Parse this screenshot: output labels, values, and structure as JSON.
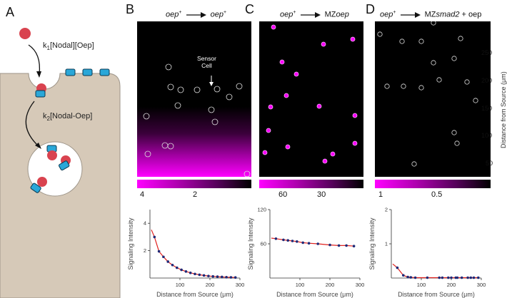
{
  "panels": {
    "A": {
      "label": "A",
      "k1": "k",
      "k1_sub": "1",
      "k1_rest": "[Nodal][Oep]",
      "k2": "k",
      "k2_sub": "2",
      "k2_rest": "[Nodal-Oep]"
    },
    "B": {
      "label": "B",
      "title_left": "oep",
      "title_left_sup": "+",
      "title_right": "oep",
      "title_right_sup": "+",
      "sensor_line1": "Sensor",
      "sensor_line2": "Cell",
      "colorbar_ticks": [
        "4",
        "2"
      ]
    },
    "C": {
      "label": "C",
      "title_left": "oep",
      "title_left_sup": "+",
      "title_right_prefix": "MZ",
      "title_right_italic": "oep",
      "colorbar_ticks": [
        "60",
        "30"
      ]
    },
    "D": {
      "label": "D",
      "title_left": "oep",
      "title_left_sup": "+",
      "title_right_prefix": "MZ",
      "title_right_italic": "smad2",
      "title_right_suffix": " + oep",
      "colorbar_ticks": [
        "1",
        "0.5"
      ]
    }
  },
  "right_axis": {
    "label": "Distance from Source (μm)",
    "ticks": [
      "250",
      "200",
      "150",
      "100",
      "50"
    ]
  },
  "colors": {
    "membrane": "#d6c9b8",
    "magenta": "#ff00ff",
    "nodal": "#d9434f",
    "receptor": "#2aa7d8",
    "curve": "#e0201e",
    "points": "#1e2a78"
  },
  "chart_data": [
    {
      "type": "scatter",
      "xlabel": "Distance from Source (μm)",
      "ylabel": "Signaling Intensity",
      "xlim": [
        0,
        300
      ],
      "ylim": [
        0,
        5
      ],
      "xticks": [
        "100",
        "200",
        "300"
      ],
      "yticks": [
        "2",
        "4"
      ],
      "x": [
        15,
        30,
        45,
        60,
        75,
        90,
        105,
        120,
        135,
        150,
        165,
        180,
        195,
        210,
        225,
        240,
        255,
        270,
        285
      ],
      "y": [
        3.0,
        1.95,
        1.55,
        1.2,
        0.95,
        0.75,
        0.6,
        0.48,
        0.38,
        0.3,
        0.24,
        0.19,
        0.15,
        0.12,
        0.1,
        0.08,
        0.06,
        0.05,
        0.04
      ],
      "fit": "exponential"
    },
    {
      "type": "scatter",
      "xlabel": "Distance from Source (μm)",
      "ylabel": "Signaling Intensity",
      "xlim": [
        0,
        300
      ],
      "ylim": [
        0,
        120
      ],
      "xticks": [
        "100",
        "200",
        "300"
      ],
      "yticks": [
        "60",
        "120"
      ],
      "x": [
        20,
        45,
        60,
        75,
        90,
        110,
        130,
        160,
        200,
        230,
        255,
        280
      ],
      "y": [
        69,
        67,
        66,
        65,
        64,
        62,
        61,
        60,
        58,
        57,
        57,
        56
      ],
      "fit": "exponential"
    },
    {
      "type": "scatter",
      "xlabel": "Distance from Source (μm)",
      "ylabel": "Signaling Intensity",
      "xlim": [
        0,
        300
      ],
      "ylim": [
        0,
        2
      ],
      "xticks": [
        "100",
        "200",
        "300"
      ],
      "yticks": [
        "1",
        "2"
      ],
      "x": [
        20,
        40,
        55,
        65,
        80,
        120,
        160,
        170,
        190,
        200,
        215,
        220,
        235,
        255,
        265,
        275,
        290
      ],
      "y": [
        0.3,
        0.08,
        0.03,
        0.02,
        0.01,
        0.01,
        0.01,
        0.01,
        0.01,
        0.01,
        0.01,
        0.01,
        0.01,
        0.01,
        0.01,
        0.01,
        0.01
      ],
      "fit": "exponential"
    }
  ]
}
